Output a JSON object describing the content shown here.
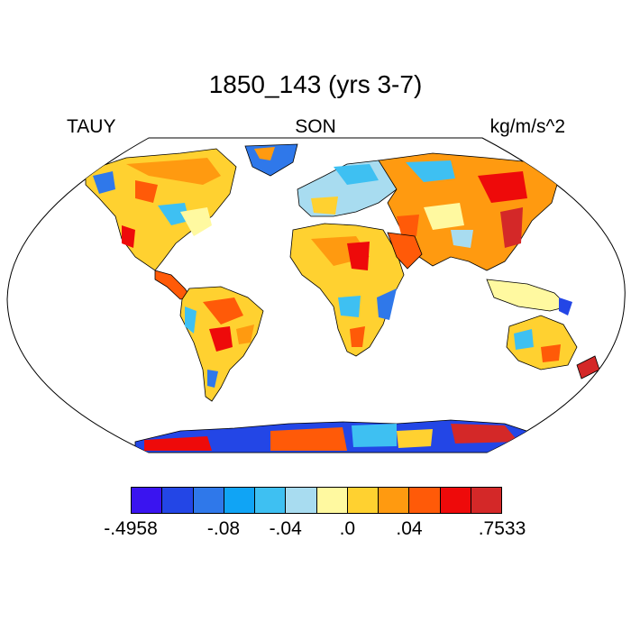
{
  "title": "1850_143 (yrs 3-7)",
  "left_label": "TAUY",
  "center_label": "SON",
  "right_label": "kg/m/s^2",
  "colorbar": {
    "colors": [
      "#3a14f0",
      "#2346e6",
      "#2f78ea",
      "#10a4f5",
      "#3ec0f2",
      "#a8dcf0",
      "#fff9a0",
      "#ffd130",
      "#ff9a10",
      "#ff5a08",
      "#ee0a0a",
      "#d42828"
    ],
    "labels": [
      {
        "text": "-.4958",
        "boundary": 0
      },
      {
        "text": "-.08",
        "boundary": 3
      },
      {
        "text": "-.04",
        "boundary": 5
      },
      {
        "text": ".0",
        "boundary": 7
      },
      {
        "text": ".04",
        "boundary": 9
      },
      {
        "text": ".7533",
        "boundary": 12
      }
    ]
  }
}
